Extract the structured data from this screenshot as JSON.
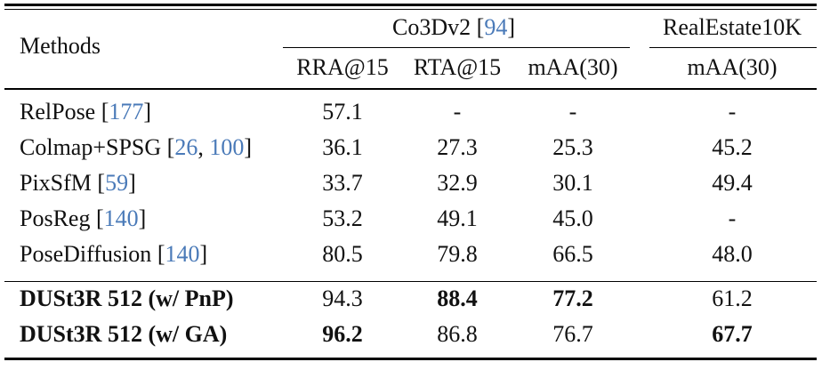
{
  "header": {
    "methods_label": "Methods",
    "group1": {
      "name": "Co3Dv2",
      "cite": "94"
    },
    "group2": {
      "name": "RealEstate10K"
    },
    "columns": [
      "RRA@15",
      "RTA@15",
      "mAA(30)",
      "mAA(30)"
    ]
  },
  "rows": [
    {
      "method": "RelPose ",
      "cites": [
        "177"
      ],
      "values": [
        "57.1",
        "-",
        "-",
        "-"
      ],
      "bold_method": false,
      "bold_values": [
        false,
        false,
        false,
        false
      ]
    },
    {
      "method": "Colmap+SPSG ",
      "cites": [
        "26",
        "100"
      ],
      "values": [
        "36.1",
        "27.3",
        "25.3",
        "45.2"
      ],
      "bold_method": false,
      "bold_values": [
        false,
        false,
        false,
        false
      ]
    },
    {
      "method": "PixSfM ",
      "cites": [
        "59"
      ],
      "values": [
        "33.7",
        "32.9",
        "30.1",
        "49.4"
      ],
      "bold_method": false,
      "bold_values": [
        false,
        false,
        false,
        false
      ]
    },
    {
      "method": "PosReg ",
      "cites": [
        "140"
      ],
      "values": [
        "53.2",
        "49.1",
        "45.0",
        "-"
      ],
      "bold_method": false,
      "bold_values": [
        false,
        false,
        false,
        false
      ]
    },
    {
      "method": "PoseDiffusion  ",
      "cites": [
        "140"
      ],
      "values": [
        "80.5",
        "79.8",
        "66.5",
        "48.0"
      ],
      "bold_method": false,
      "bold_values": [
        false,
        false,
        false,
        false
      ]
    },
    {
      "method": "DUSt3R 512 (w/ PnP)",
      "cites": [],
      "values": [
        "94.3",
        "88.4",
        "77.2",
        "61.2"
      ],
      "bold_method": true,
      "bold_values": [
        false,
        true,
        true,
        false
      ]
    },
    {
      "method": "DUSt3R 512 (w/ GA)",
      "cites": [],
      "values": [
        "96.2",
        "86.8",
        "76.7",
        "67.7"
      ],
      "bold_method": true,
      "bold_values": [
        true,
        false,
        false,
        true
      ]
    }
  ]
}
